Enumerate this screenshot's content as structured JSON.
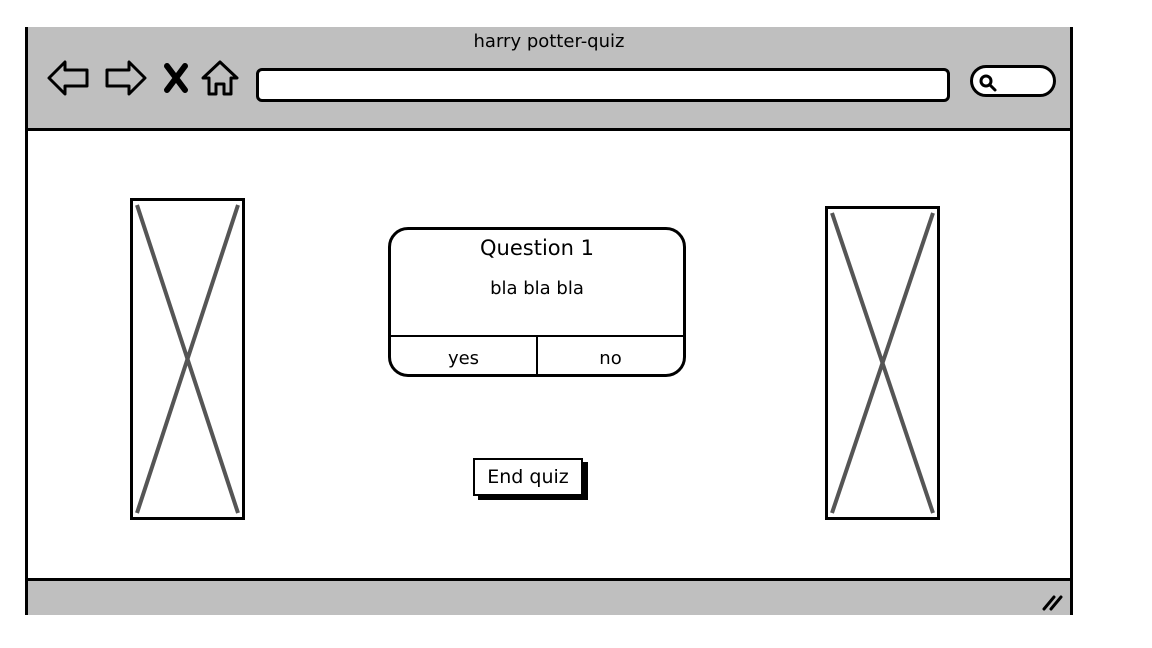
{
  "window": {
    "title": "harry potter-quiz"
  },
  "toolbar": {
    "back_icon": "back-arrow-icon",
    "forward_icon": "forward-arrow-icon",
    "stop_icon": "close-icon",
    "home_icon": "home-icon",
    "address_value": "",
    "search_icon": "search-icon"
  },
  "quiz": {
    "question_title": "Question 1",
    "question_text": "bla bla bla",
    "answers": [
      {
        "label": "yes"
      },
      {
        "label": "no"
      }
    ],
    "end_label": "End quiz"
  },
  "colors": {
    "chrome": "#bfbfbf",
    "stroke": "#000000",
    "placeholder_cross": "#555555"
  }
}
